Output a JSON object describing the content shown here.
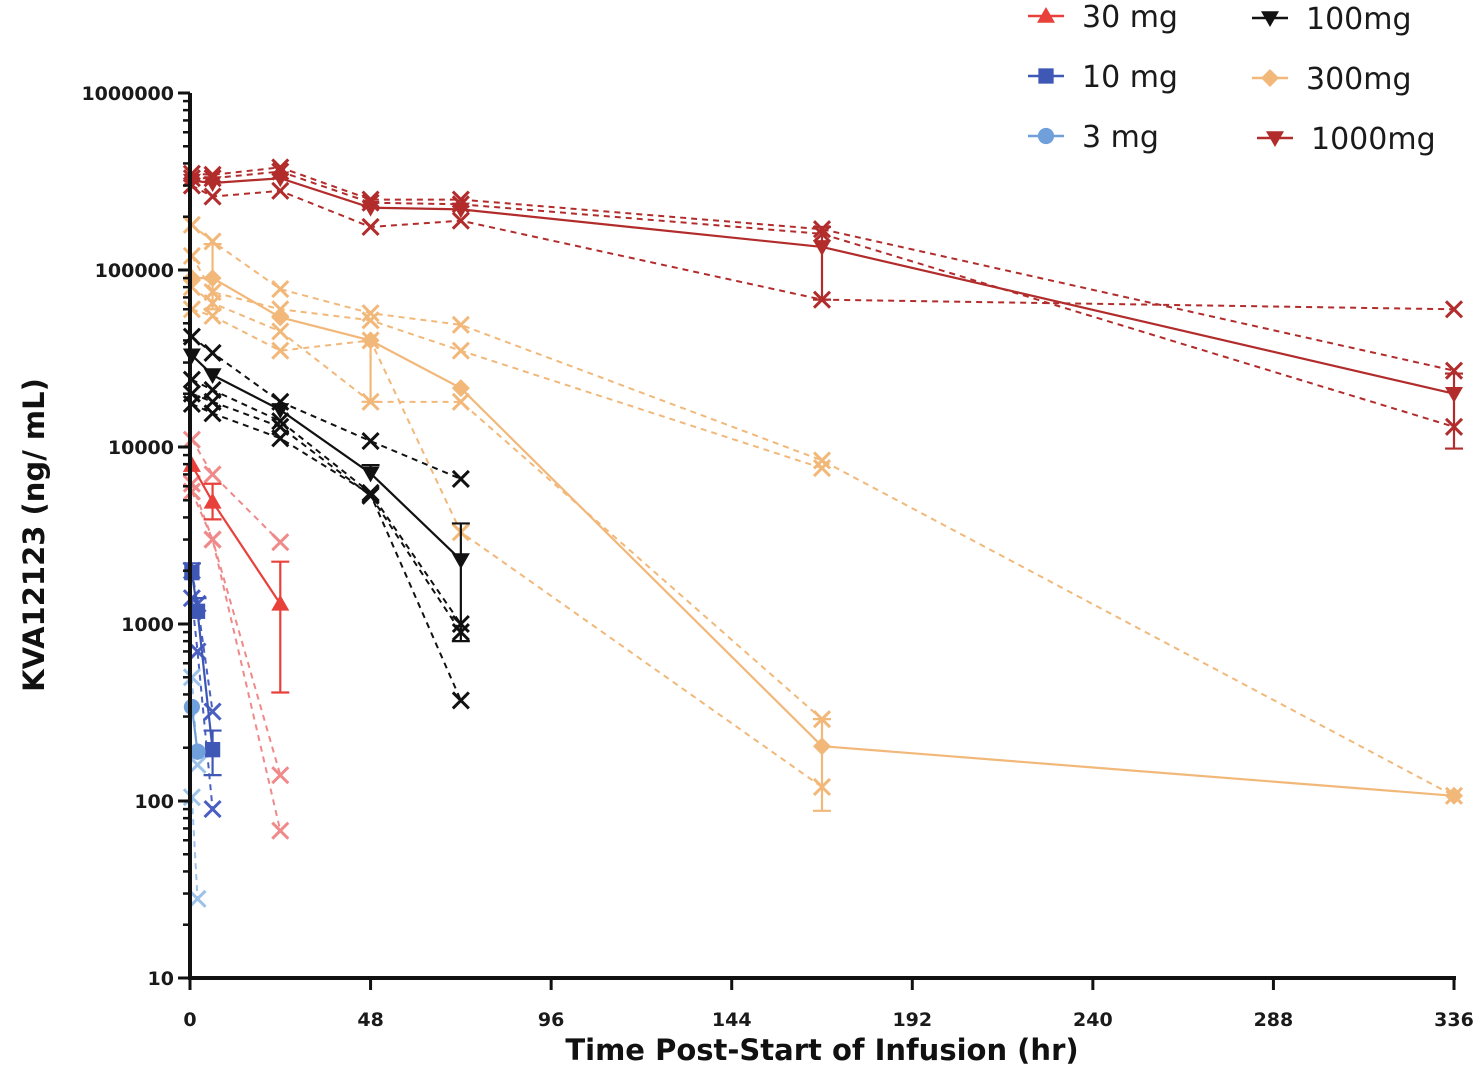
{
  "chart_data": {
    "type": "line",
    "title": "",
    "xlabel": "Time Post-Start of Infusion (hr)",
    "ylabel": "KVA12123 (ng/ mL)",
    "xlim": [
      0,
      336
    ],
    "ylim": [
      10,
      1000000
    ],
    "yscale": "log",
    "xticks": [
      0,
      48,
      96,
      144,
      192,
      240,
      288,
      336
    ],
    "xtick_labels": [
      "0",
      "48",
      "96",
      "144",
      "192",
      "240",
      "288",
      "336"
    ],
    "yticks": [
      10,
      100,
      1000,
      10000,
      100000,
      1000000
    ],
    "ytick_labels": [
      "10",
      "100",
      "1000",
      "10000",
      "100000",
      "1000000"
    ],
    "grid": false,
    "legend_position": "top-right",
    "series": [
      {
        "name": "30 mg",
        "color": "#e8403a",
        "individual_color": "#f08a8a",
        "marker": "triangle-up",
        "mean": {
          "x": [
            0.5,
            6,
            24
          ],
          "y": [
            7900,
            4900,
            1300
          ],
          "err_upper": [
            null,
            6200,
            2250
          ],
          "err_lower": [
            null,
            3900,
            410
          ]
        },
        "individuals": [
          {
            "x": [
              0.5,
              6,
              24
            ],
            "y": [
              11000,
              7000,
              2900
            ]
          },
          {
            "x": [
              0.5,
              6,
              24
            ],
            "y": [
              6200,
              3000,
              140
            ]
          },
          {
            "x": [
              0.5,
              6,
              24
            ],
            "y": [
              5600,
              3000,
              68
            ]
          }
        ]
      },
      {
        "name": "10 mg",
        "color": "#3f57b5",
        "individual_color": "#4a5fc1",
        "marker": "square",
        "mean": {
          "x": [
            0.5,
            2,
            6
          ],
          "y": [
            1950,
            1180,
            195
          ],
          "err_upper": [
            2200,
            1400,
            250
          ],
          "err_lower": [
            null,
            null,
            140
          ]
        },
        "individuals": [
          {
            "x": [
              0.5,
              2,
              6
            ],
            "y": [
              1400,
              700,
              90
            ]
          },
          {
            "x": [
              0.5,
              2,
              6
            ],
            "y": [
              2000,
              1300,
              320
            ]
          }
        ]
      },
      {
        "name": "3 mg",
        "color": "#6fa0dc",
        "individual_color": "#9cc2ea",
        "marker": "circle",
        "mean": {
          "x": [
            0.5,
            2
          ],
          "y": [
            340,
            190
          ],
          "err_upper": [
            null,
            null
          ],
          "err_lower": [
            null,
            null
          ]
        },
        "individuals": [
          {
            "x": [
              0.5,
              2
            ],
            "y": [
              500,
              160
            ]
          },
          {
            "x": [
              0.5,
              2
            ],
            "y": [
              105,
              28
            ]
          }
        ]
      },
      {
        "name": "100mg",
        "color": "#111111",
        "individual_color": "#111111",
        "marker": "triangle-down",
        "mean": {
          "x": [
            0.5,
            6,
            24,
            48,
            72
          ],
          "y": [
            33000,
            25500,
            16200,
            7100,
            2300
          ],
          "err_upper": [
            null,
            null,
            null,
            7900,
            3700
          ],
          "err_lower": [
            null,
            null,
            null,
            null,
            800
          ]
        },
        "individuals": [
          {
            "x": [
              0.5,
              6,
              24,
              48,
              72
            ],
            "y": [
              42000,
              34000,
              18000,
              10800,
              6600
            ]
          },
          {
            "x": [
              0.5,
              6,
              24,
              48,
              72
            ],
            "y": [
              24000,
              21000,
              14000,
              5500,
              1000
            ]
          },
          {
            "x": [
              0.5,
              6,
              24,
              48,
              72
            ],
            "y": [
              20000,
              18000,
              13000,
              5300,
              900
            ]
          },
          {
            "x": [
              0.5,
              6,
              24,
              48,
              72
            ],
            "y": [
              17500,
              15500,
              11200,
              5400,
              370
            ]
          }
        ]
      },
      {
        "name": "300mg",
        "color": "#f2b87a",
        "individual_color": "#f2b87a",
        "marker": "diamond",
        "mean": {
          "x": [
            0.5,
            6,
            24,
            48,
            72,
            168,
            336
          ],
          "y": [
            90000,
            90000,
            54000,
            40000,
            21500,
            204,
            107
          ],
          "err_upper": [
            null,
            140000,
            null,
            null,
            null,
            290,
            null
          ],
          "err_lower": [
            null,
            60000,
            null,
            18000,
            null,
            88,
            null
          ]
        },
        "individuals": [
          {
            "x": [
              0.5,
              6,
              24,
              48,
              72,
              168,
              336
            ],
            "y": [
              180000,
              145000,
              78000,
              57000,
              49000,
              8400,
              107
            ]
          },
          {
            "x": [
              0.5,
              6,
              24,
              48,
              72,
              168
            ],
            "y": [
              120000,
              75000,
              60000,
              52000,
              35000,
              7600
            ]
          },
          {
            "x": [
              0.5,
              6,
              24,
              48,
              72,
              168
            ],
            "y": [
              80000,
              65000,
              45000,
              18000,
              18000,
              290
            ]
          },
          {
            "x": [
              0.5,
              6,
              24,
              48,
              72,
              168
            ],
            "y": [
              60000,
              55000,
              35000,
              40000,
              3300,
              120
            ]
          }
        ]
      },
      {
        "name": "1000mg",
        "color": "#b22c2c",
        "individual_color": "#b22c2c",
        "marker": "triangle-down",
        "mean": {
          "x": [
            0.5,
            6,
            24,
            48,
            72,
            168,
            336
          ],
          "y": [
            320000,
            310000,
            330000,
            225000,
            220000,
            135000,
            20000
          ],
          "err_upper": [
            null,
            null,
            null,
            null,
            null,
            175000,
            26000
          ],
          "err_lower": [
            null,
            null,
            null,
            null,
            null,
            68000,
            9800
          ]
        },
        "individuals": [
          {
            "x": [
              0.5,
              6,
              24,
              48,
              72,
              168,
              336
            ],
            "y": [
              350000,
              345000,
              380000,
              250000,
              250000,
              170000,
              27000
            ]
          },
          {
            "x": [
              0.5,
              6,
              24,
              48,
              72,
              168,
              336
            ],
            "y": [
              330000,
              330000,
              360000,
              240000,
              235000,
              160000,
              13000
            ]
          },
          {
            "x": [
              0.5,
              6,
              24,
              48,
              72,
              168,
              336
            ],
            "y": [
              300000,
              260000,
              280000,
              175000,
              190000,
              68000,
              60000
            ]
          }
        ]
      }
    ],
    "legend": [
      {
        "label": "30 mg",
        "color": "#e8403a",
        "marker": "triangle-up"
      },
      {
        "label": "10 mg",
        "color": "#3f57b5",
        "marker": "square"
      },
      {
        "label": "3 mg",
        "color": "#6fa0dc",
        "marker": "circle"
      },
      {
        "label": "100mg",
        "color": "#111111",
        "marker": "triangle-down"
      },
      {
        "label": "300mg",
        "color": "#f2b87a",
        "marker": "diamond"
      },
      {
        "label": "1000mg",
        "color": "#b22c2c",
        "marker": "triangle-down"
      }
    ]
  }
}
